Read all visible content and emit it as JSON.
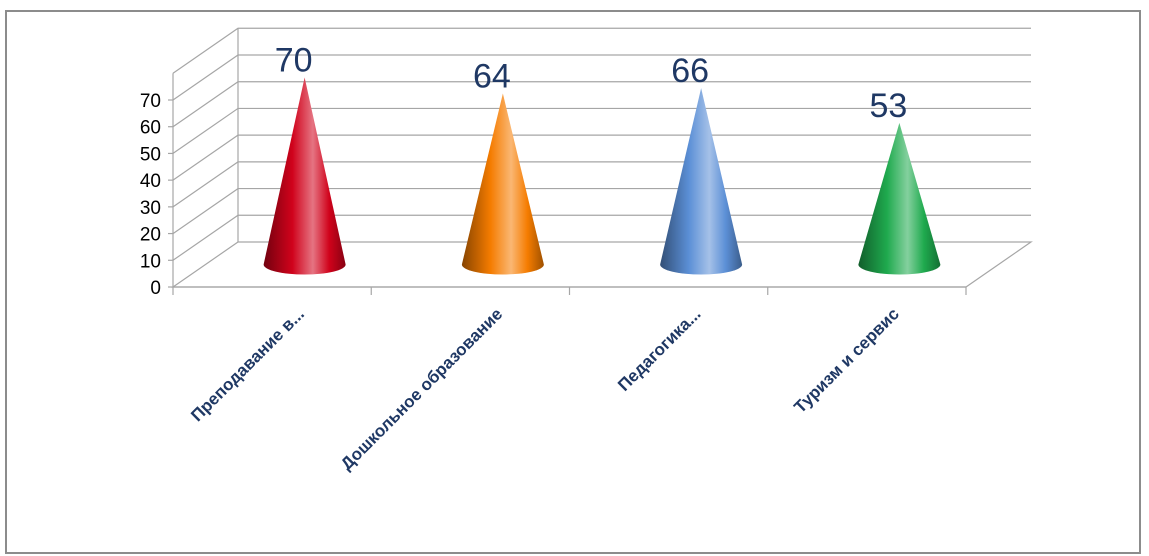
{
  "chart_data": {
    "type": "bar",
    "style": "3d-cone",
    "categories": [
      "Преподавание в...",
      "Дошкольное образование",
      "Педагогика...",
      "Туризм и сервис"
    ],
    "values": [
      70,
      64,
      66,
      53
    ],
    "colors": [
      "#d0021b",
      "#f57c00",
      "#5b8fd6",
      "#1faa4e"
    ],
    "data_labels": [
      "70",
      "64",
      "66",
      "53"
    ],
    "yticks": [
      "0",
      "10",
      "20",
      "30",
      "40",
      "50",
      "60",
      "70"
    ],
    "ylim": [
      0,
      80
    ],
    "grid": true,
    "legend": "none",
    "title": "",
    "xlabel": "",
    "ylabel": ""
  }
}
